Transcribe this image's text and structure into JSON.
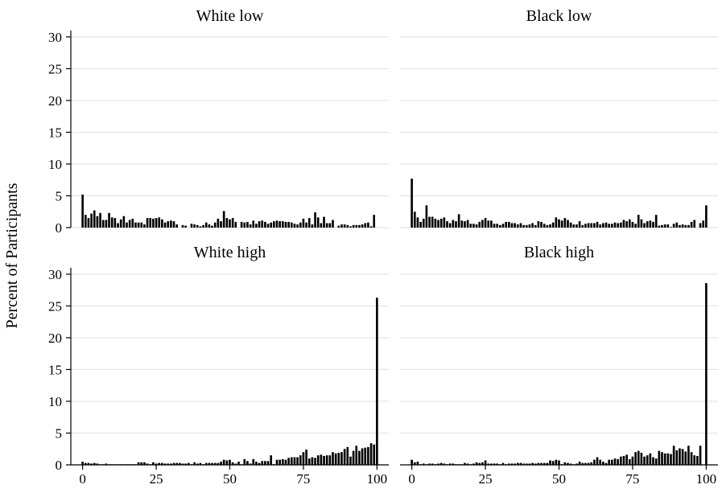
{
  "chart_data": {
    "type": "bar",
    "ylabel": "Percent of Participants",
    "ylim": [
      0,
      31
    ],
    "yticks": [
      0,
      5,
      10,
      15,
      20,
      25,
      30
    ],
    "xlim": [
      -4,
      104
    ],
    "xticks": [
      0,
      25,
      50,
      75,
      100
    ],
    "grid": true,
    "bin_width": 1,
    "panels": [
      {
        "title": "White low",
        "values": [
          5.2,
          2.0,
          1.5,
          2.2,
          2.7,
          1.8,
          2.3,
          1.2,
          1.2,
          2.3,
          1.6,
          1.5,
          0.7,
          1.3,
          1.8,
          0.8,
          1.2,
          1.4,
          0.8,
          0.8,
          0.8,
          0.5,
          1.5,
          1.5,
          1.4,
          1.5,
          1.6,
          1.3,
          0.8,
          1.0,
          1.1,
          1.0,
          0.5,
          0,
          0.4,
          0.3,
          0,
          0.6,
          0.5,
          0.4,
          0.2,
          0.4,
          0.8,
          0.5,
          0.3,
          0.8,
          1.4,
          1.0,
          2.6,
          1.5,
          1.3,
          1.5,
          0.9,
          0,
          0.9,
          0.8,
          0.9,
          0.5,
          1.1,
          0.6,
          1.0,
          1.1,
          0.9,
          0.6,
          0.8,
          1.0,
          1.1,
          1.0,
          1.0,
          0.9,
          0.9,
          0.8,
          0.6,
          0.5,
          0.8,
          1.4,
          0.8,
          1.5,
          0.5,
          2.4,
          1.6,
          0.7,
          1.7,
          0.7,
          0.7,
          1.2,
          0,
          0.3,
          0.5,
          0.5,
          0.4,
          0.2,
          0.4,
          0.4,
          0.4,
          0.5,
          0.7,
          0.8,
          0.2,
          2.0
        ]
      },
      {
        "title": "Black low",
        "values": [
          7.7,
          2.5,
          1.6,
          0.9,
          1.4,
          3.5,
          1.7,
          1.7,
          1.4,
          1.2,
          1.4,
          1.6,
          1.0,
          0.7,
          1.2,
          1.0,
          2.1,
          1.1,
          1.0,
          1.2,
          0.6,
          0.6,
          0.5,
          0.9,
          1.2,
          1.5,
          1.1,
          1.1,
          0.6,
          0.6,
          0.4,
          0.6,
          0.9,
          0.9,
          0.7,
          0.7,
          0.5,
          0.7,
          0.4,
          0.4,
          0.5,
          0.7,
          0.4,
          1.0,
          0.9,
          0.6,
          0.4,
          0.5,
          0.8,
          1.6,
          1.3,
          1.1,
          1.5,
          1.2,
          0.8,
          0.5,
          0.5,
          1.0,
          0.4,
          0.6,
          0.7,
          0.7,
          0.7,
          0.9,
          0.5,
          0.7,
          0.8,
          0.6,
          0.6,
          0.8,
          0.7,
          0.8,
          1.2,
          1.0,
          1.3,
          0.9,
          0.6,
          2.0,
          1.3,
          0.7,
          1.0,
          1.1,
          0.9,
          2.0,
          0.3,
          0.4,
          0.5,
          0.5,
          0.1,
          0.6,
          0.8,
          0.4,
          0.5,
          0.4,
          0.4,
          0.9,
          1.2,
          0,
          0.7,
          1.1,
          3.5
        ]
      },
      {
        "title": "White high",
        "values": [
          0.5,
          0.3,
          0.3,
          0.2,
          0.3,
          0.2,
          0.1,
          0.1,
          0.2,
          0.1,
          0.1,
          0.1,
          0.1,
          0.1,
          0.1,
          0.1,
          0.1,
          0.1,
          0.1,
          0.4,
          0.4,
          0.4,
          0.2,
          0.1,
          0.4,
          0.2,
          0.3,
          0.3,
          0.2,
          0.2,
          0.2,
          0.3,
          0.3,
          0.3,
          0.2,
          0.2,
          0.3,
          0.1,
          0.4,
          0.2,
          0.3,
          0.1,
          0.3,
          0.3,
          0.3,
          0.3,
          0.3,
          0.5,
          0.8,
          0.7,
          0.8,
          0.4,
          0.2,
          0.5,
          0.1,
          0.9,
          0.6,
          0.2,
          0.9,
          0.5,
          0.3,
          0.6,
          0.6,
          0.6,
          1.5,
          0.1,
          0.8,
          0.8,
          0.9,
          0.8,
          1.1,
          1.2,
          1.2,
          1.2,
          1.5,
          2.0,
          2.4,
          1.0,
          1.2,
          1.1,
          1.5,
          1.6,
          1.4,
          1.5,
          1.5,
          2.0,
          1.8,
          1.9,
          2.0,
          2.5,
          2.8,
          1.3,
          2.2,
          3.0,
          2.2,
          2.6,
          2.7,
          2.8,
          3.4,
          3.2,
          26.3
        ]
      },
      {
        "title": "Black high",
        "values": [
          0.8,
          0.4,
          0.5,
          0.1,
          0.2,
          0.1,
          0.2,
          0.2,
          0.1,
          0.2,
          0.3,
          0.2,
          0.1,
          0.2,
          0.2,
          0.1,
          0.1,
          0.1,
          0.3,
          0.2,
          0.1,
          0.2,
          0.4,
          0.3,
          0.4,
          0.7,
          0.2,
          0.2,
          0.2,
          0.2,
          0.1,
          0.3,
          0.1,
          0.2,
          0.2,
          0.2,
          0.3,
          0.3,
          0.2,
          0.2,
          0.2,
          0.3,
          0.2,
          0.3,
          0.3,
          0.3,
          0.3,
          0.7,
          0.6,
          0.8,
          0.7,
          0.1,
          0.4,
          0.3,
          0.2,
          0.1,
          0.2,
          0.5,
          0.3,
          0.3,
          0.3,
          0.4,
          0.8,
          1.2,
          0.8,
          0.5,
          0.3,
          0.8,
          0.8,
          1.0,
          0.9,
          1.3,
          1.4,
          1.6,
          0.9,
          1.3,
          2.0,
          2.2,
          1.9,
          1.3,
          1.5,
          1.8,
          1.2,
          1.0,
          2.2,
          2.0,
          1.8,
          1.8,
          1.7,
          3.0,
          2.3,
          2.6,
          2.5,
          2.1,
          3.0,
          2.0,
          1.5,
          1.4,
          3.0,
          0,
          28.6
        ]
      }
    ]
  }
}
